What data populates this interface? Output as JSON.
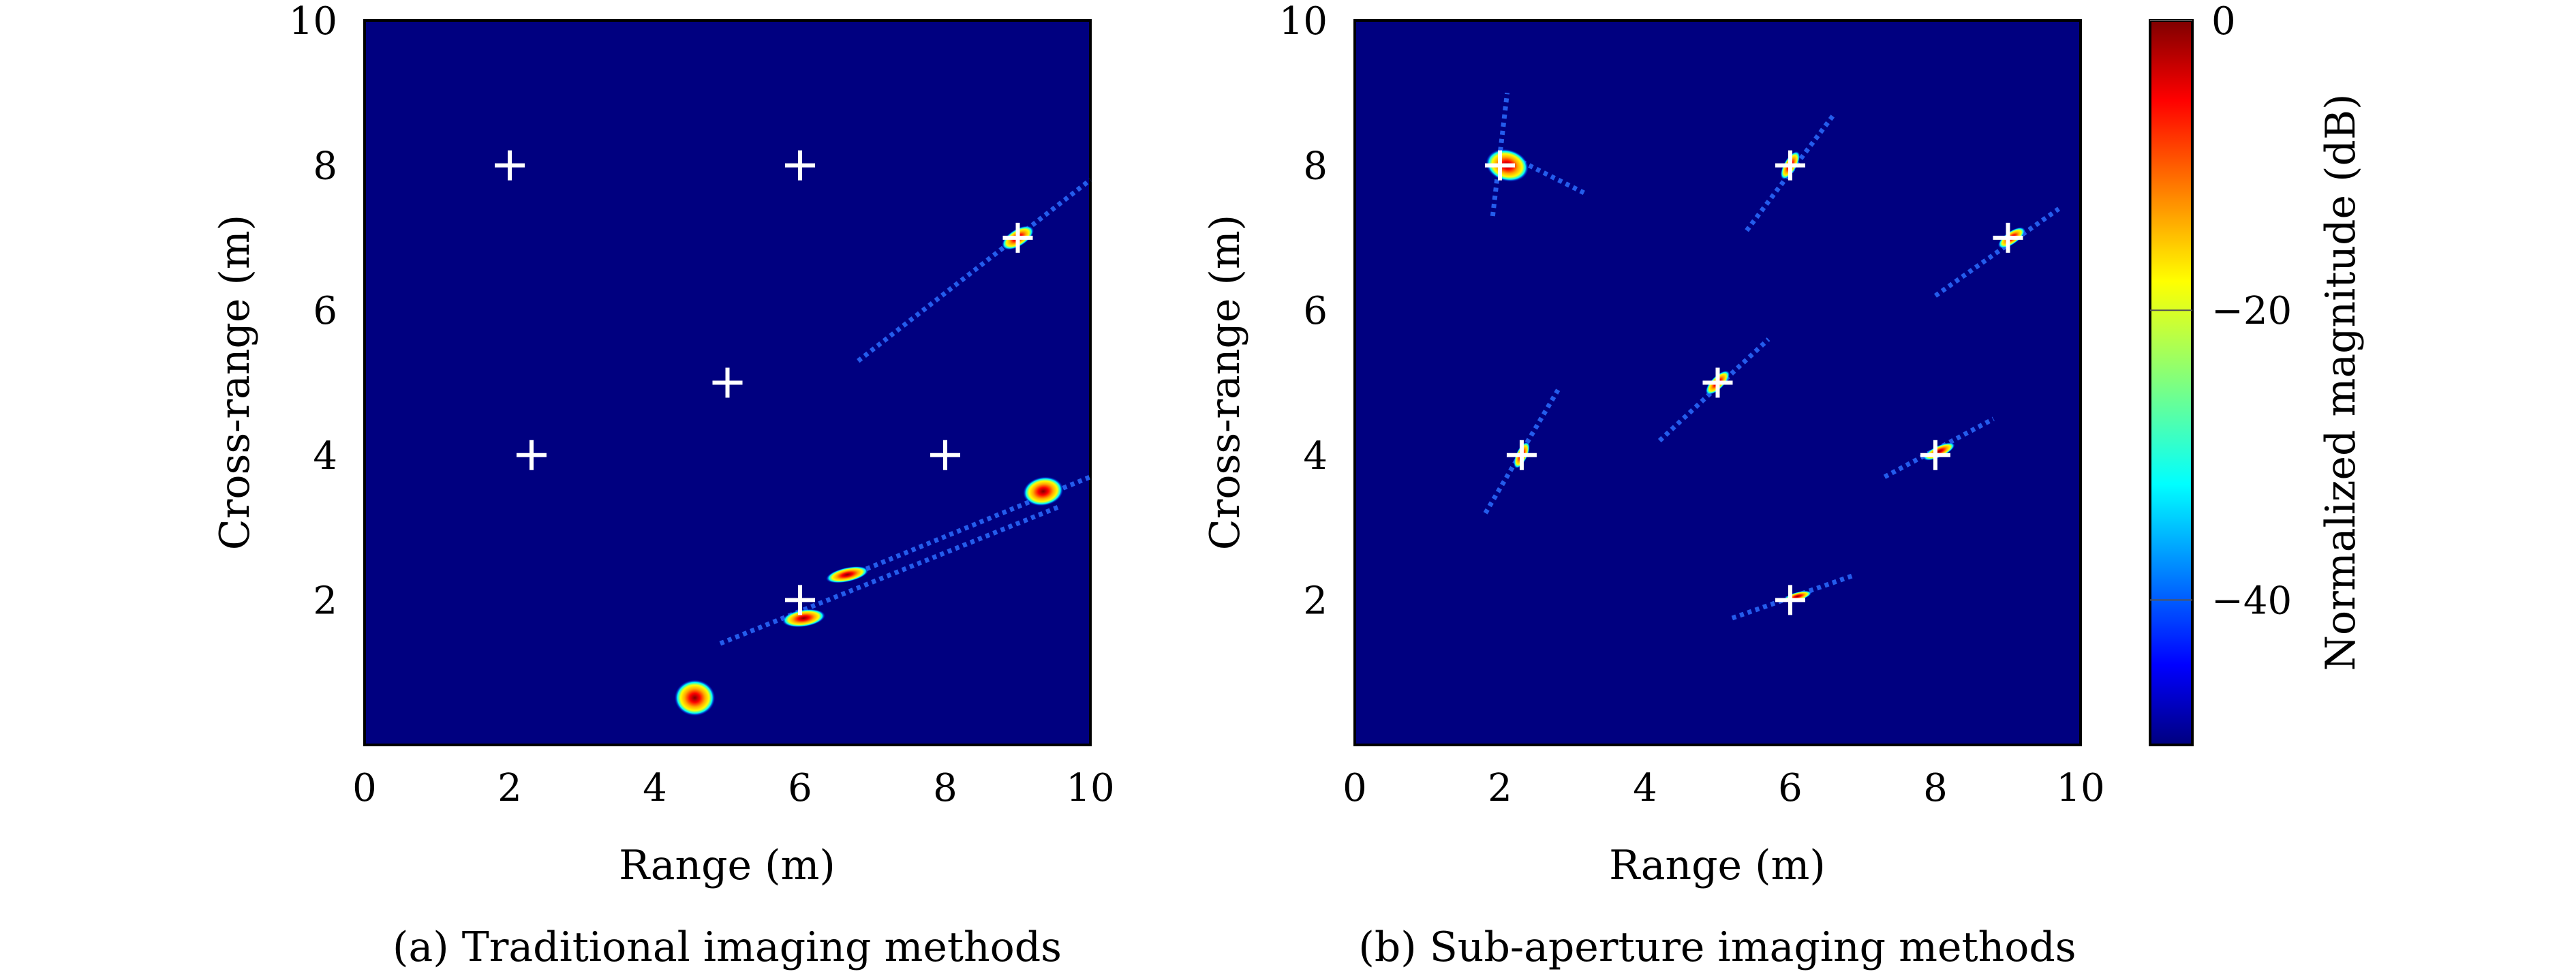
{
  "colors": {
    "background_field": "#000080",
    "marker": "#ffffff",
    "axis": "#000000",
    "colormap": [
      "#00007f",
      "#0000ff",
      "#007fff",
      "#00ffff",
      "#7fff7f",
      "#ffff00",
      "#ff7f00",
      "#ff0000",
      "#7f0000"
    ]
  },
  "colorbar": {
    "label": "Normalized magnitude (dB)",
    "range": [
      -50,
      0
    ],
    "ticks": [
      {
        "value": 0,
        "label": "0"
      },
      {
        "value": -20,
        "label": "−20"
      },
      {
        "value": -40,
        "label": "−40"
      }
    ]
  },
  "chart_data": [
    {
      "type": "heatmap",
      "caption": "(a) Traditional imaging methods",
      "xlabel": "Range (m)",
      "ylabel": "Cross-range (m)",
      "xlim": [
        0,
        10
      ],
      "ylim": [
        0,
        10
      ],
      "xticks": [
        {
          "value": 0,
          "label": "0"
        },
        {
          "value": 2,
          "label": "2"
        },
        {
          "value": 4,
          "label": "4"
        },
        {
          "value": 6,
          "label": "6"
        },
        {
          "value": 8,
          "label": "8"
        },
        {
          "value": 10,
          "label": "10"
        }
      ],
      "yticks": [
        {
          "value": 2,
          "label": "2"
        },
        {
          "value": 4,
          "label": "4"
        },
        {
          "value": 6,
          "label": "6"
        },
        {
          "value": 8,
          "label": "8"
        },
        {
          "value": 10,
          "label": "10"
        }
      ],
      "true_targets": [
        {
          "x": 2.0,
          "y": 8.0
        },
        {
          "x": 6.0,
          "y": 8.0
        },
        {
          "x": 9.0,
          "y": 7.0
        },
        {
          "x": 5.0,
          "y": 5.0
        },
        {
          "x": 2.3,
          "y": 4.0
        },
        {
          "x": 8.0,
          "y": 4.0
        },
        {
          "x": 6.0,
          "y": 2.0
        }
      ],
      "responses": [
        {
          "x": 9.0,
          "y": 7.0,
          "rx": 0.25,
          "ry": 0.12,
          "angle": 32,
          "peak": 0
        },
        {
          "x": 9.35,
          "y": 3.5,
          "rx": 0.28,
          "ry": 0.2,
          "angle": 10,
          "peak": 0
        },
        {
          "x": 6.65,
          "y": 2.35,
          "rx": 0.3,
          "ry": 0.1,
          "angle": 12,
          "peak": 0
        },
        {
          "x": 6.05,
          "y": 1.75,
          "rx": 0.3,
          "ry": 0.12,
          "angle": 8,
          "peak": 0
        },
        {
          "x": 4.55,
          "y": 0.65,
          "rx": 0.28,
          "ry": 0.25,
          "angle": 0,
          "peak": 0
        }
      ],
      "streaks": [
        {
          "x1": 6.8,
          "y1": 5.3,
          "x2": 10.0,
          "y2": 7.8
        },
        {
          "x1": 6.6,
          "y1": 2.3,
          "x2": 10.0,
          "y2": 3.7
        },
        {
          "x1": 4.9,
          "y1": 1.4,
          "x2": 9.6,
          "y2": 3.3
        }
      ]
    },
    {
      "type": "heatmap",
      "caption": "(b) Sub-aperture imaging methods",
      "xlabel": "Range (m)",
      "ylabel": "Cross-range (m)",
      "xlim": [
        0,
        10
      ],
      "ylim": [
        0,
        10
      ],
      "xticks": [
        {
          "value": 0,
          "label": "0"
        },
        {
          "value": 2,
          "label": "2"
        },
        {
          "value": 4,
          "label": "4"
        },
        {
          "value": 6,
          "label": "6"
        },
        {
          "value": 8,
          "label": "8"
        },
        {
          "value": 10,
          "label": "10"
        }
      ],
      "yticks": [
        {
          "value": 2,
          "label": "2"
        },
        {
          "value": 4,
          "label": "4"
        },
        {
          "value": 6,
          "label": "6"
        },
        {
          "value": 8,
          "label": "8"
        },
        {
          "value": 10,
          "label": "10"
        }
      ],
      "true_targets": [
        {
          "x": 2.0,
          "y": 8.0
        },
        {
          "x": 6.0,
          "y": 8.0
        },
        {
          "x": 9.0,
          "y": 7.0
        },
        {
          "x": 5.0,
          "y": 5.0
        },
        {
          "x": 2.3,
          "y": 4.0
        },
        {
          "x": 8.0,
          "y": 4.0
        },
        {
          "x": 6.0,
          "y": 2.0
        }
      ],
      "responses": [
        {
          "x": 2.1,
          "y": 8.0,
          "rx": 0.22,
          "ry": 0.3,
          "angle": 75,
          "peak": 0
        },
        {
          "x": 6.0,
          "y": 8.0,
          "rx": 0.22,
          "ry": 0.09,
          "angle": 60,
          "peak": 0
        },
        {
          "x": 9.05,
          "y": 7.0,
          "rx": 0.22,
          "ry": 0.09,
          "angle": 35,
          "peak": 0
        },
        {
          "x": 5.0,
          "y": 5.0,
          "rx": 0.22,
          "ry": 0.09,
          "angle": 45,
          "peak": 0
        },
        {
          "x": 2.3,
          "y": 4.0,
          "rx": 0.2,
          "ry": 0.08,
          "angle": 65,
          "peak": 0
        },
        {
          "x": 8.05,
          "y": 4.05,
          "rx": 0.24,
          "ry": 0.08,
          "angle": 25,
          "peak": 0
        },
        {
          "x": 6.1,
          "y": 2.05,
          "rx": 0.2,
          "ry": 0.06,
          "angle": 15,
          "peak": 0
        }
      ],
      "streaks": [
        {
          "x1": 1.9,
          "y1": 7.3,
          "x2": 2.1,
          "y2": 9.0
        },
        {
          "x1": 2.2,
          "y1": 8.1,
          "x2": 3.2,
          "y2": 7.6
        },
        {
          "x1": 5.4,
          "y1": 7.1,
          "x2": 6.6,
          "y2": 8.7
        },
        {
          "x1": 8.0,
          "y1": 6.2,
          "x2": 9.7,
          "y2": 7.4
        },
        {
          "x1": 4.2,
          "y1": 4.2,
          "x2": 5.7,
          "y2": 5.6
        },
        {
          "x1": 1.8,
          "y1": 3.2,
          "x2": 2.8,
          "y2": 4.9
        },
        {
          "x1": 7.3,
          "y1": 3.7,
          "x2": 8.8,
          "y2": 4.5
        },
        {
          "x1": 5.2,
          "y1": 1.75,
          "x2": 6.9,
          "y2": 2.35
        }
      ]
    }
  ]
}
